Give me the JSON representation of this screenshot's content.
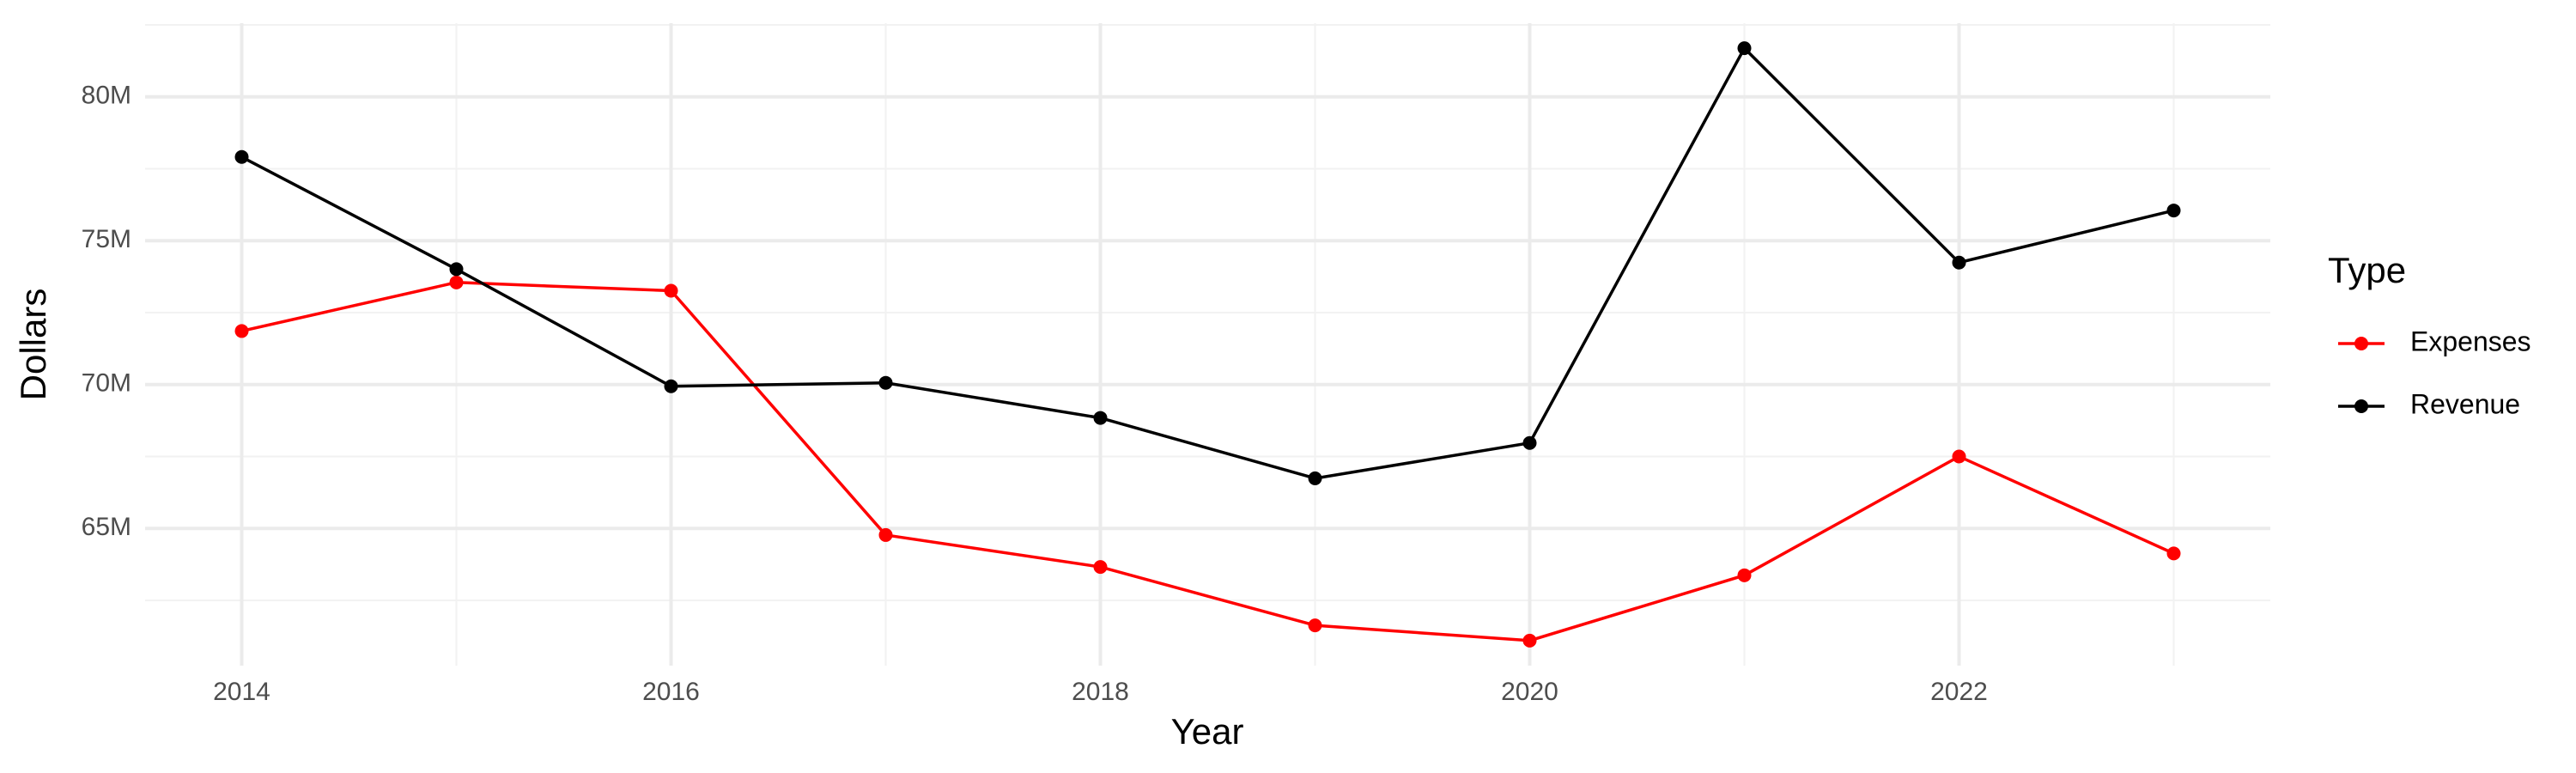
{
  "chart_data": {
    "type": "line",
    "x_label": "Year",
    "y_label": "Dollars",
    "legend_title": "Type",
    "x": [
      2014,
      2015,
      2016,
      2017,
      2018,
      2019,
      2020,
      2021,
      2022,
      2023
    ],
    "series": [
      {
        "name": "Expenses",
        "color": "#ff0000",
        "values": [
          71860000,
          73550000,
          73260000,
          64770000,
          63660000,
          61630000,
          61100000,
          63370000,
          67500000,
          64130000
        ]
      },
      {
        "name": "Revenue",
        "color": "#000000",
        "values": [
          77910000,
          74010000,
          69940000,
          70060000,
          68840000,
          66740000,
          67970000,
          81690000,
          74240000,
          76050000
        ]
      }
    ],
    "xlim": [
      2013.55,
      2023.45
    ],
    "xticks": [
      2014,
      2016,
      2018,
      2020,
      2022
    ],
    "ylim": [
      60230000,
      82560000
    ],
    "yticks": [
      {
        "value": 65000000,
        "label": "65M"
      },
      {
        "value": 70000000,
        "label": "70M"
      },
      {
        "value": 75000000,
        "label": "75M"
      },
      {
        "value": 80000000,
        "label": "80M"
      }
    ],
    "grid": true,
    "legend": "right"
  }
}
